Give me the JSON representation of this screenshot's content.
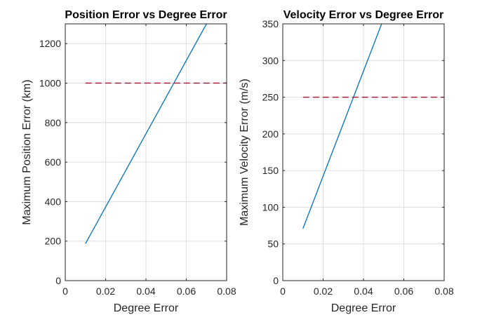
{
  "chart_data": [
    {
      "type": "line",
      "title": "Position Error vs Degree Error",
      "xlabel": "Degree Error",
      "ylabel": "Maximum Position Error (km)",
      "xlim": [
        0,
        0.08
      ],
      "ylim": [
        0,
        1300
      ],
      "xticks": [
        0,
        0.02,
        0.04,
        0.06,
        0.08
      ],
      "xticklabels": [
        "0",
        "0.02",
        "0.04",
        "0.06",
        "0.08"
      ],
      "yticks": [
        0,
        200,
        400,
        600,
        800,
        1000,
        1200
      ],
      "yticklabels": [
        "0",
        "200",
        "400",
        "600",
        "800",
        "1000",
        "1200"
      ],
      "grid": true,
      "series": [
        {
          "x": [
            0.01,
            0.07
          ],
          "y": [
            187,
            1300
          ],
          "color": "#0072BD",
          "style": "solid"
        },
        {
          "x": [
            0.01,
            0.08
          ],
          "y": [
            1000,
            1000
          ],
          "color": "#A2142F",
          "style": "dashed"
        }
      ]
    },
    {
      "type": "line",
      "title": "Velocity Error vs Degree Error",
      "xlabel": "Degree Error",
      "ylabel": "Maximum Velocity Error (m/s)",
      "xlim": [
        0,
        0.08
      ],
      "ylim": [
        0,
        350
      ],
      "xticks": [
        0,
        0.02,
        0.04,
        0.06,
        0.08
      ],
      "xticklabels": [
        "0",
        "0.02",
        "0.04",
        "0.06",
        "0.08"
      ],
      "yticks": [
        0,
        50,
        100,
        150,
        200,
        250,
        300,
        350
      ],
      "yticklabels": [
        "0",
        "50",
        "100",
        "150",
        "200",
        "250",
        "300",
        "350"
      ],
      "grid": true,
      "series": [
        {
          "x": [
            0.01,
            0.049
          ],
          "y": [
            71,
            350
          ],
          "color": "#0072BD",
          "style": "solid"
        },
        {
          "x": [
            0.01,
            0.08
          ],
          "y": [
            250,
            250
          ],
          "color": "#A2142F",
          "style": "dashed"
        }
      ]
    }
  ]
}
